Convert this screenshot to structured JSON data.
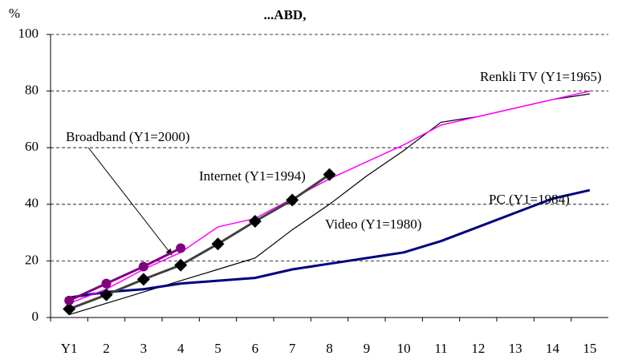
{
  "chart_data": {
    "type": "line",
    "title": "...ABD,",
    "y_label": "%",
    "categories": [
      "Y1",
      "2",
      "3",
      "4",
      "5",
      "6",
      "7",
      "8",
      "9",
      "10",
      "11",
      "12",
      "13",
      "14",
      "15"
    ],
    "series": [
      {
        "name": "Video (Y1=1980)",
        "color": "#000000",
        "values": [
          1,
          5,
          9,
          13,
          17,
          21,
          31,
          40,
          50,
          59,
          69,
          71,
          74,
          77,
          79
        ]
      },
      {
        "name": "PC (Y1=1984)",
        "color": "#000080",
        "values": [
          7,
          9,
          10,
          12,
          13,
          14,
          17,
          19,
          21,
          23,
          27,
          32,
          37,
          42,
          45
        ]
      },
      {
        "name": "Renkli TV (Y1=1965)",
        "color": "#ff00ff",
        "values": [
          5,
          10,
          17,
          23,
          32,
          35,
          42,
          49,
          55,
          61,
          68,
          71,
          74,
          77,
          80
        ]
      },
      {
        "name": "Internet  (Y1=1994)",
        "color": "#404040",
        "marker": "diamond",
        "values": [
          3,
          8,
          13.5,
          18.5,
          26,
          34,
          41.5,
          50.5,
          null,
          null,
          null,
          null,
          null,
          null,
          null
        ]
      },
      {
        "name": "Broadband (Y1=2000)",
        "color": "#800080",
        "marker": "circle",
        "values": [
          6,
          12,
          18,
          24.5,
          null,
          null,
          null,
          null,
          null,
          null,
          null,
          null,
          null,
          null,
          null
        ]
      }
    ],
    "ylim": [
      0,
      100
    ],
    "yticks": [
      0,
      20,
      40,
      60,
      80,
      100
    ],
    "grid": true
  }
}
